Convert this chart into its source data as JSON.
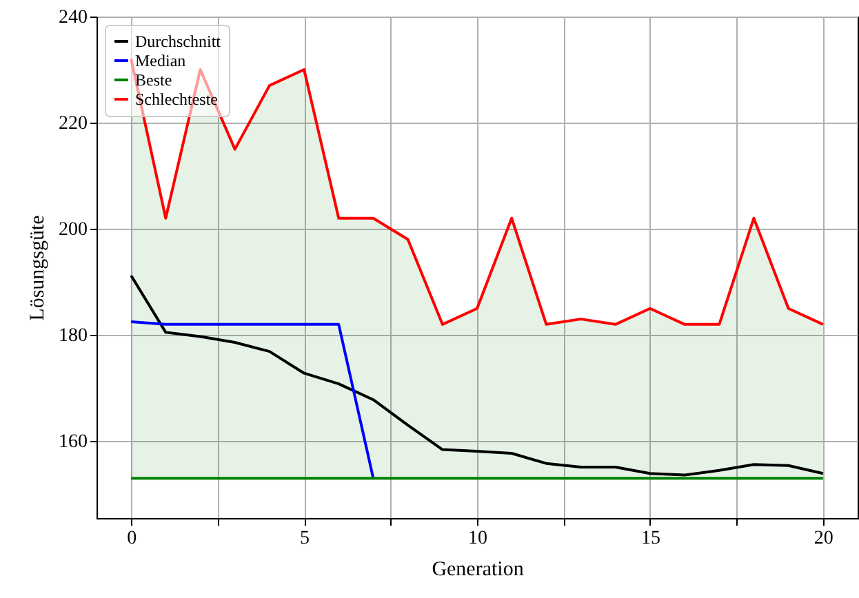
{
  "chart_data": {
    "type": "line",
    "xlabel": "Generation",
    "ylabel": "Lösungsgüte",
    "x": [
      0,
      1,
      2,
      3,
      4,
      5,
      6,
      7,
      8,
      9,
      10,
      11,
      12,
      13,
      14,
      15,
      16,
      17,
      18,
      19,
      20
    ],
    "series": [
      {
        "name": "Durchschnitt",
        "color": "#000000",
        "values": [
          191.2,
          180.5,
          179.7,
          178.6,
          176.9,
          172.8,
          170.8,
          167.8,
          163.0,
          158.4,
          158.1,
          157.7,
          155.8,
          155.1,
          155.1,
          153.9,
          153.6,
          154.5,
          155.6,
          155.4,
          153.9
        ]
      },
      {
        "name": "Median",
        "color": "#0000ff",
        "values": [
          182.5,
          182,
          182,
          182,
          182,
          182,
          182,
          153,
          null,
          null,
          null,
          null,
          null,
          null,
          null,
          null,
          null,
          null,
          null,
          null,
          null
        ]
      },
      {
        "name": "Beste",
        "color": "#008000",
        "values": [
          153,
          153,
          153,
          153,
          153,
          153,
          153,
          153,
          153,
          153,
          153,
          153,
          153,
          153,
          153,
          153,
          153,
          153,
          153,
          153,
          153
        ],
        "lower": [
          153,
          153,
          153,
          153,
          153,
          153,
          153,
          153,
          153,
          153,
          153,
          153,
          153,
          153,
          153,
          153,
          153,
          153,
          153,
          153,
          153
        ],
        "upper": [
          232,
          202,
          230,
          215,
          227,
          230,
          202,
          202,
          198,
          182,
          185,
          202,
          182,
          183,
          182,
          185,
          182,
          182,
          202,
          185,
          182
        ]
      },
      {
        "name": "Schlechteste",
        "color": "#ff0000",
        "values": [
          232,
          202,
          230,
          215,
          227,
          230,
          202,
          202,
          198,
          182,
          185,
          202,
          182,
          183,
          182,
          185,
          182,
          182,
          202,
          185,
          182
        ]
      }
    ],
    "xlim": [
      -1,
      21
    ],
    "xticks": [
      0,
      {
        "value": 2.5,
        "label": null
      },
      5,
      {
        "value": 7.5,
        "label": null
      },
      10,
      {
        "value": 12.5,
        "label": null
      },
      15,
      {
        "value": 17.5,
        "label": null
      },
      20
    ],
    "ylim": [
      145.5,
      240
    ],
    "yticks": [
      160,
      180,
      200,
      220,
      240
    ],
    "grid": true,
    "legend": "top left",
    "marker": "none",
    "line_style": "solid"
  }
}
